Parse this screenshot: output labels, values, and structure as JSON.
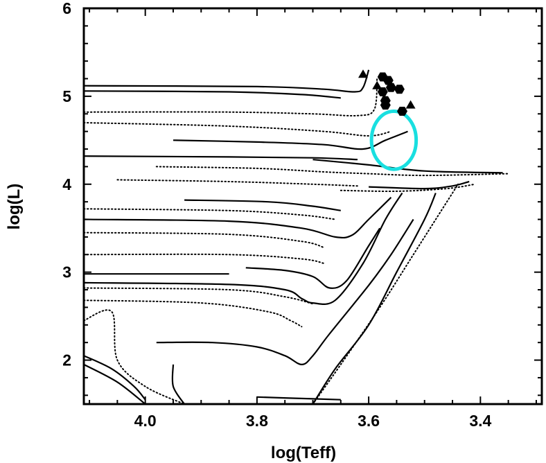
{
  "chart_data": {
    "type": "line",
    "title": "",
    "xlabel": "log(Teff)",
    "ylabel": "log(L)",
    "x_reversed": true,
    "xlim": [
      4.11,
      3.29
    ],
    "ylim": [
      1.5,
      6.0
    ],
    "x_ticks": [
      {
        "value": 4.0,
        "label": "4.0"
      },
      {
        "value": 3.8,
        "label": "3.8"
      },
      {
        "value": 3.6,
        "label": "3.6"
      },
      {
        "value": 3.4,
        "label": "3.4"
      }
    ],
    "y_ticks": [
      {
        "value": 2,
        "label": "2"
      },
      {
        "value": 3,
        "label": "3"
      },
      {
        "value": 4,
        "label": "4"
      },
      {
        "value": 5,
        "label": "5"
      },
      {
        "value": 6,
        "label": "6"
      }
    ],
    "grid": false,
    "series": [
      {
        "style": "solid",
        "points": [
          [
            4.11,
            5.12
          ],
          [
            3.8,
            5.11
          ],
          [
            3.68,
            5.08
          ],
          [
            3.625,
            5.05
          ],
          [
            3.61,
            5.1
          ],
          [
            3.6,
            5.3
          ]
        ]
      },
      {
        "style": "solid",
        "points": [
          [
            4.11,
            5.06
          ],
          [
            3.85,
            5.05
          ],
          [
            3.72,
            5.02
          ],
          [
            3.65,
            4.98
          ]
        ]
      },
      {
        "style": "dotted",
        "points": [
          [
            4.11,
            4.82
          ],
          [
            3.85,
            4.82
          ],
          [
            3.7,
            4.8
          ],
          [
            3.62,
            4.78
          ],
          [
            3.59,
            4.85
          ],
          [
            3.585,
            5.2
          ]
        ]
      },
      {
        "style": "dotted",
        "points": [
          [
            4.11,
            4.7
          ],
          [
            3.85,
            4.66
          ],
          [
            3.68,
            4.6
          ],
          [
            3.6,
            4.55
          ],
          [
            3.56,
            4.6
          ]
        ]
      },
      {
        "style": "solid",
        "points": [
          [
            3.95,
            4.5
          ],
          [
            3.8,
            4.48
          ],
          [
            3.68,
            4.45
          ],
          [
            3.61,
            4.4
          ],
          [
            3.57,
            4.5
          ],
          [
            3.53,
            4.6
          ]
        ]
      },
      {
        "style": "solid",
        "points": [
          [
            4.11,
            4.32
          ],
          [
            3.85,
            4.31
          ],
          [
            3.7,
            4.3
          ],
          [
            3.62,
            4.28
          ]
        ]
      },
      {
        "style": "solid",
        "points": [
          [
            3.7,
            4.28
          ],
          [
            3.6,
            4.22
          ],
          [
            3.5,
            4.15
          ],
          [
            3.36,
            4.13
          ]
        ]
      },
      {
        "style": "dotted",
        "points": [
          [
            3.98,
            4.2
          ],
          [
            3.8,
            4.18
          ],
          [
            3.68,
            4.14
          ],
          [
            3.6,
            4.12
          ],
          [
            3.5,
            4.1
          ],
          [
            3.35,
            4.12
          ]
        ]
      },
      {
        "style": "dotted",
        "points": [
          [
            4.05,
            4.05
          ],
          [
            3.85,
            4.03
          ],
          [
            3.7,
            4.0
          ],
          [
            3.62,
            3.98
          ]
        ]
      },
      {
        "style": "solid",
        "points": [
          [
            3.6,
            3.97
          ],
          [
            3.5,
            3.95
          ],
          [
            3.45,
            3.98
          ],
          [
            3.42,
            4.03
          ]
        ]
      },
      {
        "style": "dotted",
        "points": [
          [
            3.65,
            3.93
          ],
          [
            3.55,
            3.92
          ],
          [
            3.46,
            3.95
          ],
          [
            3.41,
            4.0
          ]
        ]
      },
      {
        "style": "solid",
        "points": [
          [
            3.93,
            3.82
          ],
          [
            3.78,
            3.8
          ],
          [
            3.7,
            3.75
          ],
          [
            3.65,
            3.7
          ]
        ]
      },
      {
        "style": "dotted",
        "points": [
          [
            4.11,
            3.72
          ],
          [
            3.85,
            3.7
          ],
          [
            3.72,
            3.65
          ],
          [
            3.66,
            3.6
          ]
        ]
      },
      {
        "style": "solid",
        "points": [
          [
            4.11,
            3.6
          ],
          [
            3.85,
            3.58
          ],
          [
            3.72,
            3.5
          ],
          [
            3.66,
            3.4
          ],
          [
            3.63,
            3.42
          ],
          [
            3.6,
            3.6
          ],
          [
            3.56,
            3.85
          ]
        ]
      },
      {
        "style": "dotted",
        "points": [
          [
            4.11,
            3.45
          ],
          [
            3.85,
            3.43
          ],
          [
            3.72,
            3.35
          ],
          [
            3.68,
            3.28
          ]
        ]
      },
      {
        "style": "dotted",
        "points": [
          [
            4.11,
            3.2
          ],
          [
            3.85,
            3.2
          ],
          [
            3.72,
            3.15
          ],
          [
            3.68,
            3.1
          ]
        ]
      },
      {
        "style": "solid",
        "points": [
          [
            3.82,
            3.05
          ],
          [
            3.75,
            3.02
          ],
          [
            3.7,
            2.95
          ],
          [
            3.67,
            2.82
          ],
          [
            3.64,
            2.9
          ],
          [
            3.6,
            3.3
          ],
          [
            3.58,
            3.5
          ]
        ]
      },
      {
        "style": "solid",
        "points": [
          [
            4.11,
            2.98
          ],
          [
            3.85,
            2.98
          ]
        ]
      },
      {
        "style": "dotted",
        "points": [
          [
            4.11,
            2.82
          ],
          [
            3.85,
            2.8
          ],
          [
            3.75,
            2.72
          ],
          [
            3.7,
            2.64
          ]
        ]
      },
      {
        "style": "solid",
        "points": [
          [
            4.11,
            2.88
          ],
          [
            3.85,
            2.86
          ],
          [
            3.75,
            2.8
          ],
          [
            3.72,
            2.7
          ],
          [
            3.7,
            2.65
          ],
          [
            3.66,
            2.68
          ],
          [
            3.61,
            3.1
          ],
          [
            3.57,
            3.6
          ],
          [
            3.54,
            3.9
          ]
        ]
      },
      {
        "style": "dotted",
        "points": [
          [
            4.11,
            2.68
          ],
          [
            3.9,
            2.65
          ],
          [
            3.78,
            2.55
          ],
          [
            3.74,
            2.45
          ],
          [
            3.72,
            2.38
          ]
        ]
      },
      {
        "style": "dotted",
        "points": [
          [
            4.11,
            2.45
          ],
          [
            4.06,
            2.55
          ],
          [
            4.05,
            2.0
          ],
          [
            4.0,
            1.7
          ],
          [
            3.93,
            1.5
          ]
        ]
      },
      {
        "style": "solid",
        "points": [
          [
            3.98,
            2.2
          ],
          [
            3.88,
            2.2
          ],
          [
            3.8,
            2.15
          ],
          [
            3.75,
            2.05
          ],
          [
            3.72,
            1.95
          ],
          [
            3.7,
            2.05
          ],
          [
            3.67,
            2.3
          ],
          [
            3.6,
            2.85
          ],
          [
            3.56,
            3.2
          ],
          [
            3.52,
            3.6
          ]
        ]
      },
      {
        "style": "solid",
        "points": [
          [
            4.11,
            2.05
          ],
          [
            4.06,
            1.9
          ],
          [
            4.02,
            1.7
          ],
          [
            4.0,
            1.55
          ]
        ]
      },
      {
        "style": "solid",
        "points": [
          [
            4.11,
            1.95
          ],
          [
            4.05,
            1.75
          ],
          [
            4.0,
            1.5
          ]
        ]
      },
      {
        "style": "solid",
        "points": [
          [
            3.95,
            1.95
          ],
          [
            3.95,
            1.7
          ],
          [
            3.93,
            1.5
          ]
        ]
      },
      {
        "style": "solid",
        "points": [
          [
            3.7,
            1.5
          ],
          [
            3.66,
            1.9
          ],
          [
            3.6,
            2.4
          ],
          [
            3.55,
            3.0
          ],
          [
            3.5,
            3.6
          ],
          [
            3.48,
            3.9
          ]
        ]
      },
      {
        "style": "dotted",
        "points": [
          [
            3.7,
            1.5
          ],
          [
            3.65,
            1.95
          ],
          [
            3.58,
            2.6
          ],
          [
            3.52,
            3.2
          ],
          [
            3.47,
            3.7
          ],
          [
            3.44,
            4.0
          ]
        ]
      },
      {
        "style": "solid",
        "points": [
          [
            3.8,
            1.58
          ],
          [
            3.7,
            1.56
          ],
          [
            3.65,
            1.55
          ]
        ]
      }
    ],
    "markers": [
      {
        "shape": "triangle",
        "x": 3.61,
        "y": 5.25
      },
      {
        "shape": "hexagon",
        "x": 3.575,
        "y": 5.22
      },
      {
        "shape": "hexagon",
        "x": 3.565,
        "y": 5.18
      },
      {
        "shape": "hexagon",
        "x": 3.56,
        "y": 5.1
      },
      {
        "shape": "hexagon",
        "x": 3.575,
        "y": 5.05
      },
      {
        "shape": "hexagon",
        "x": 3.545,
        "y": 5.08
      },
      {
        "shape": "hexagon",
        "x": 3.57,
        "y": 4.95
      },
      {
        "shape": "hexagon",
        "x": 3.57,
        "y": 4.9
      },
      {
        "shape": "hexagon",
        "x": 3.54,
        "y": 4.83
      },
      {
        "shape": "triangle",
        "x": 3.525,
        "y": 4.9
      },
      {
        "shape": "triangle",
        "x": 3.585,
        "y": 5.12
      }
    ],
    "highlight_ellipse": {
      "cx": 3.555,
      "cy": 4.5,
      "rx": 0.04,
      "ry": 0.33,
      "color": "#19dfe0"
    }
  }
}
